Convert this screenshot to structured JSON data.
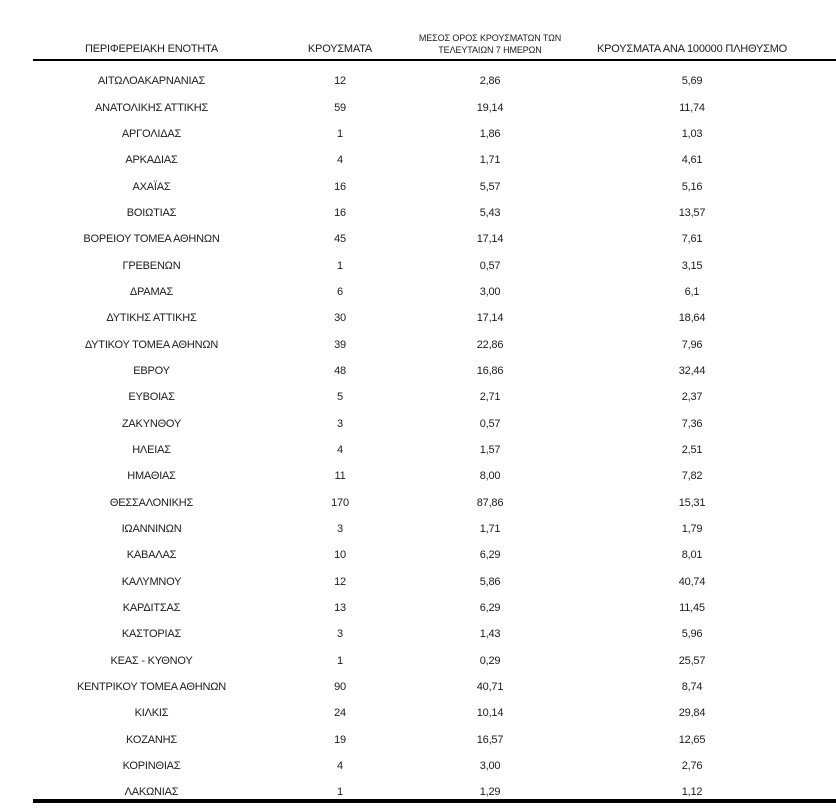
{
  "table": {
    "columns": {
      "region": "ΠΕΡΙΦΕΡΕΙΑΚΗ ΕΝΟΤΗΤΑ",
      "cases": "ΚΡΟΥΣΜΑΤΑ",
      "avg7_line1": "ΜΕΣΟΣ ΟΡΟΣ ΚΡΟΥΣΜΑΤΩΝ ΤΩΝ",
      "avg7_line2": "ΤΕΛΕΥΤΑΙΩΝ 7 ΗΜΕΡΩΝ",
      "per_100k": "ΚΡΟΥΣΜΑΤΑ ΑΝΑ 100000 ΠΛΗΘΥΣΜΟ"
    },
    "rows": [
      {
        "region": "ΑΙΤΩΛΟΑΚΑΡΝΑΝΙΑΣ",
        "cases": "12",
        "avg7": "2,86",
        "per100k": "5,69"
      },
      {
        "region": "ΑΝΑΤΟΛΙΚΗΣ ΑΤΤΙΚΗΣ",
        "cases": "59",
        "avg7": "19,14",
        "per100k": "11,74"
      },
      {
        "region": "ΑΡΓΟΛΙΔΑΣ",
        "cases": "1",
        "avg7": "1,86",
        "per100k": "1,03"
      },
      {
        "region": "ΑΡΚΑΔΙΑΣ",
        "cases": "4",
        "avg7": "1,71",
        "per100k": "4,61"
      },
      {
        "region": "ΑΧΑΪΑΣ",
        "cases": "16",
        "avg7": "5,57",
        "per100k": "5,16"
      },
      {
        "region": "ΒΟΙΩΤΙΑΣ",
        "cases": "16",
        "avg7": "5,43",
        "per100k": "13,57"
      },
      {
        "region": "ΒΟΡΕΙΟΥ ΤΟΜΕΑ ΑΘΗΝΩΝ",
        "cases": "45",
        "avg7": "17,14",
        "per100k": "7,61"
      },
      {
        "region": "ΓΡΕΒΕΝΩΝ",
        "cases": "1",
        "avg7": "0,57",
        "per100k": "3,15"
      },
      {
        "region": "ΔΡΑΜΑΣ",
        "cases": "6",
        "avg7": "3,00",
        "per100k": "6,1"
      },
      {
        "region": "ΔΥΤΙΚΗΣ ΑΤΤΙΚΗΣ",
        "cases": "30",
        "avg7": "17,14",
        "per100k": "18,64"
      },
      {
        "region": "ΔΥΤΙΚΟΥ ΤΟΜΕΑ ΑΘΗΝΩΝ",
        "cases": "39",
        "avg7": "22,86",
        "per100k": "7,96"
      },
      {
        "region": "ΕΒΡΟΥ",
        "cases": "48",
        "avg7": "16,86",
        "per100k": "32,44"
      },
      {
        "region": "ΕΥΒΟΙΑΣ",
        "cases": "5",
        "avg7": "2,71",
        "per100k": "2,37"
      },
      {
        "region": "ΖΑΚΥΝΘΟΥ",
        "cases": "3",
        "avg7": "0,57",
        "per100k": "7,36"
      },
      {
        "region": "ΗΛΕΙΑΣ",
        "cases": "4",
        "avg7": "1,57",
        "per100k": "2,51"
      },
      {
        "region": "ΗΜΑΘΙΑΣ",
        "cases": "11",
        "avg7": "8,00",
        "per100k": "7,82"
      },
      {
        "region": "ΘΕΣΣΑΛΟΝΙΚΗΣ",
        "cases": "170",
        "avg7": "87,86",
        "per100k": "15,31"
      },
      {
        "region": "ΙΩΑΝΝΙΝΩΝ",
        "cases": "3",
        "avg7": "1,71",
        "per100k": "1,79"
      },
      {
        "region": "ΚΑΒΑΛΑΣ",
        "cases": "10",
        "avg7": "6,29",
        "per100k": "8,01"
      },
      {
        "region": "ΚΑΛΥΜΝΟΥ",
        "cases": "12",
        "avg7": "5,86",
        "per100k": "40,74"
      },
      {
        "region": "ΚΑΡΔΙΤΣΑΣ",
        "cases": "13",
        "avg7": "6,29",
        "per100k": "11,45"
      },
      {
        "region": "ΚΑΣΤΟΡΙΑΣ",
        "cases": "3",
        "avg7": "1,43",
        "per100k": "5,96"
      },
      {
        "region": "ΚΕΑΣ - ΚΥΘΝΟΥ",
        "cases": "1",
        "avg7": "0,29",
        "per100k": "25,57"
      },
      {
        "region": "ΚΕΝΤΡΙΚΟΥ ΤΟΜΕΑ ΑΘΗΝΩΝ",
        "cases": "90",
        "avg7": "40,71",
        "per100k": "8,74"
      },
      {
        "region": "ΚΙΛΚΙΣ",
        "cases": "24",
        "avg7": "10,14",
        "per100k": "29,84"
      },
      {
        "region": "ΚΟΖΑΝΗΣ",
        "cases": "19",
        "avg7": "16,57",
        "per100k": "12,65"
      },
      {
        "region": "ΚΟΡΙΝΘΙΑΣ",
        "cases": "4",
        "avg7": "3,00",
        "per100k": "2,76"
      },
      {
        "region": "ΛΑΚΩΝΙΑΣ",
        "cases": "1",
        "avg7": "1,29",
        "per100k": "1,12"
      }
    ]
  },
  "colors": {
    "text": "#1c1c1c",
    "rule": "#000000",
    "background": "#ffffff"
  }
}
